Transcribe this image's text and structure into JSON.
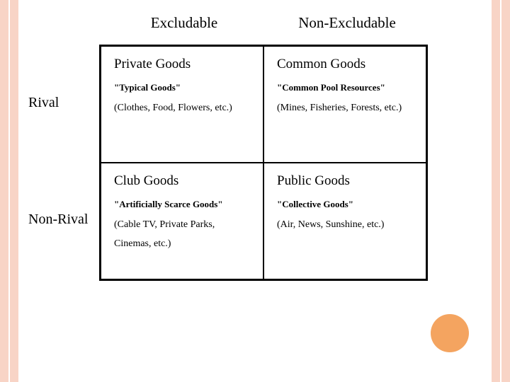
{
  "matrix": {
    "type": "table",
    "background_color": "#ffffff",
    "border_color": "#000000",
    "stripe_color": "#f8d4c6",
    "circle_color": "#f4a460",
    "col_headers": [
      "Excludable",
      "Non-Excludable"
    ],
    "row_headers": [
      "Rival",
      "Non-Rival"
    ],
    "cells": [
      [
        {
          "title": "Private Goods",
          "subtitle": "\"Typical Goods\"",
          "examples": "(Clothes, Food, Flowers, etc.)"
        },
        {
          "title": "Common Goods",
          "subtitle": "\"Common Pool Resources\"",
          "examples": "(Mines, Fisheries, Forests, etc.)"
        }
      ],
      [
        {
          "title": "Club Goods",
          "subtitle": "\"Artificially Scarce Goods\"",
          "examples": "(Cable TV, Private Parks, Cinemas, etc.)"
        },
        {
          "title": "Public Goods",
          "subtitle": "\"Collective Goods\"",
          "examples": "(Air, News, Sunshine, etc.)"
        }
      ]
    ],
    "title_fontsize": 19,
    "header_fontsize": 21,
    "subtitle_fontsize": 13,
    "example_fontsize": 14
  }
}
